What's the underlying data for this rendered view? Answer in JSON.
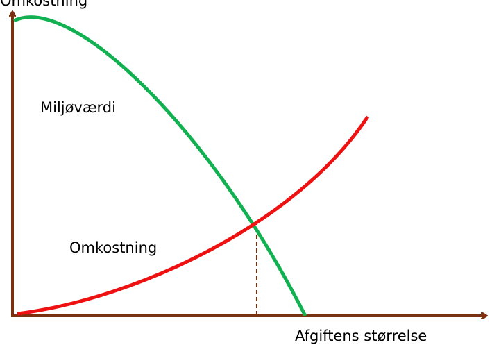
{
  "axes": {
    "y_label": "Omkostning",
    "x_label": "Afgiftens størrelse"
  },
  "curves": [
    {
      "label": "Miljøværdi"
    },
    {
      "label": "Omkostning"
    }
  ]
}
